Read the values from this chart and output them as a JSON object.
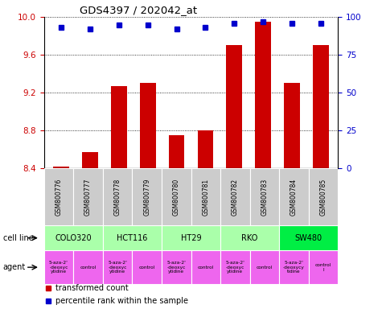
{
  "title": "GDS4397 / 202042_at",
  "samples": [
    "GSM800776",
    "GSM800777",
    "GSM800778",
    "GSM800779",
    "GSM800780",
    "GSM800781",
    "GSM800782",
    "GSM800783",
    "GSM800784",
    "GSM800785"
  ],
  "bar_values": [
    8.42,
    8.57,
    9.27,
    9.3,
    8.75,
    8.8,
    9.7,
    9.95,
    9.3,
    9.7
  ],
  "dot_values": [
    93,
    92,
    95,
    95,
    92,
    93,
    96,
    97,
    96,
    96
  ],
  "ylim": [
    8.4,
    10.0
  ],
  "yticks_left": [
    8.4,
    8.8,
    9.2,
    9.6,
    10.0
  ],
  "yticks_right": [
    0,
    25,
    50,
    75,
    100
  ],
  "bar_color": "#cc0000",
  "dot_color": "#0000cc",
  "cell_lines": [
    {
      "label": "COLO320",
      "start": 0,
      "end": 2,
      "color": "#aaffaa"
    },
    {
      "label": "HCT116",
      "start": 2,
      "end": 4,
      "color": "#aaffaa"
    },
    {
      "label": "HT29",
      "start": 4,
      "end": 6,
      "color": "#aaffaa"
    },
    {
      "label": "RKO",
      "start": 6,
      "end": 8,
      "color": "#aaffaa"
    },
    {
      "label": "SW480",
      "start": 8,
      "end": 10,
      "color": "#00ee44"
    }
  ],
  "agents": [
    {
      "label": "5-aza-2'\n-deoxyc\nytidine",
      "start": 0,
      "end": 1,
      "color": "#ee66ee"
    },
    {
      "label": "control",
      "start": 1,
      "end": 2,
      "color": "#ee66ee"
    },
    {
      "label": "5-aza-2'\n-deoxyc\nytidine",
      "start": 2,
      "end": 3,
      "color": "#ee66ee"
    },
    {
      "label": "control",
      "start": 3,
      "end": 4,
      "color": "#ee66ee"
    },
    {
      "label": "5-aza-2'\n-deoxyc\nytidine",
      "start": 4,
      "end": 5,
      "color": "#ee66ee"
    },
    {
      "label": "control",
      "start": 5,
      "end": 6,
      "color": "#ee66ee"
    },
    {
      "label": "5-aza-2'\n-deoxyc\nytidine",
      "start": 6,
      "end": 7,
      "color": "#ee66ee"
    },
    {
      "label": "control",
      "start": 7,
      "end": 8,
      "color": "#ee66ee"
    },
    {
      "label": "5-aza-2'\n-deoxycy\ntidine",
      "start": 8,
      "end": 9,
      "color": "#ee66ee"
    },
    {
      "label": "control\nl",
      "start": 9,
      "end": 10,
      "color": "#ee66ee"
    }
  ],
  "legend_red": "transformed count",
  "legend_blue": "percentile rank within the sample",
  "cell_line_label": "cell line",
  "agent_label": "agent",
  "sample_bg": "#cccccc"
}
